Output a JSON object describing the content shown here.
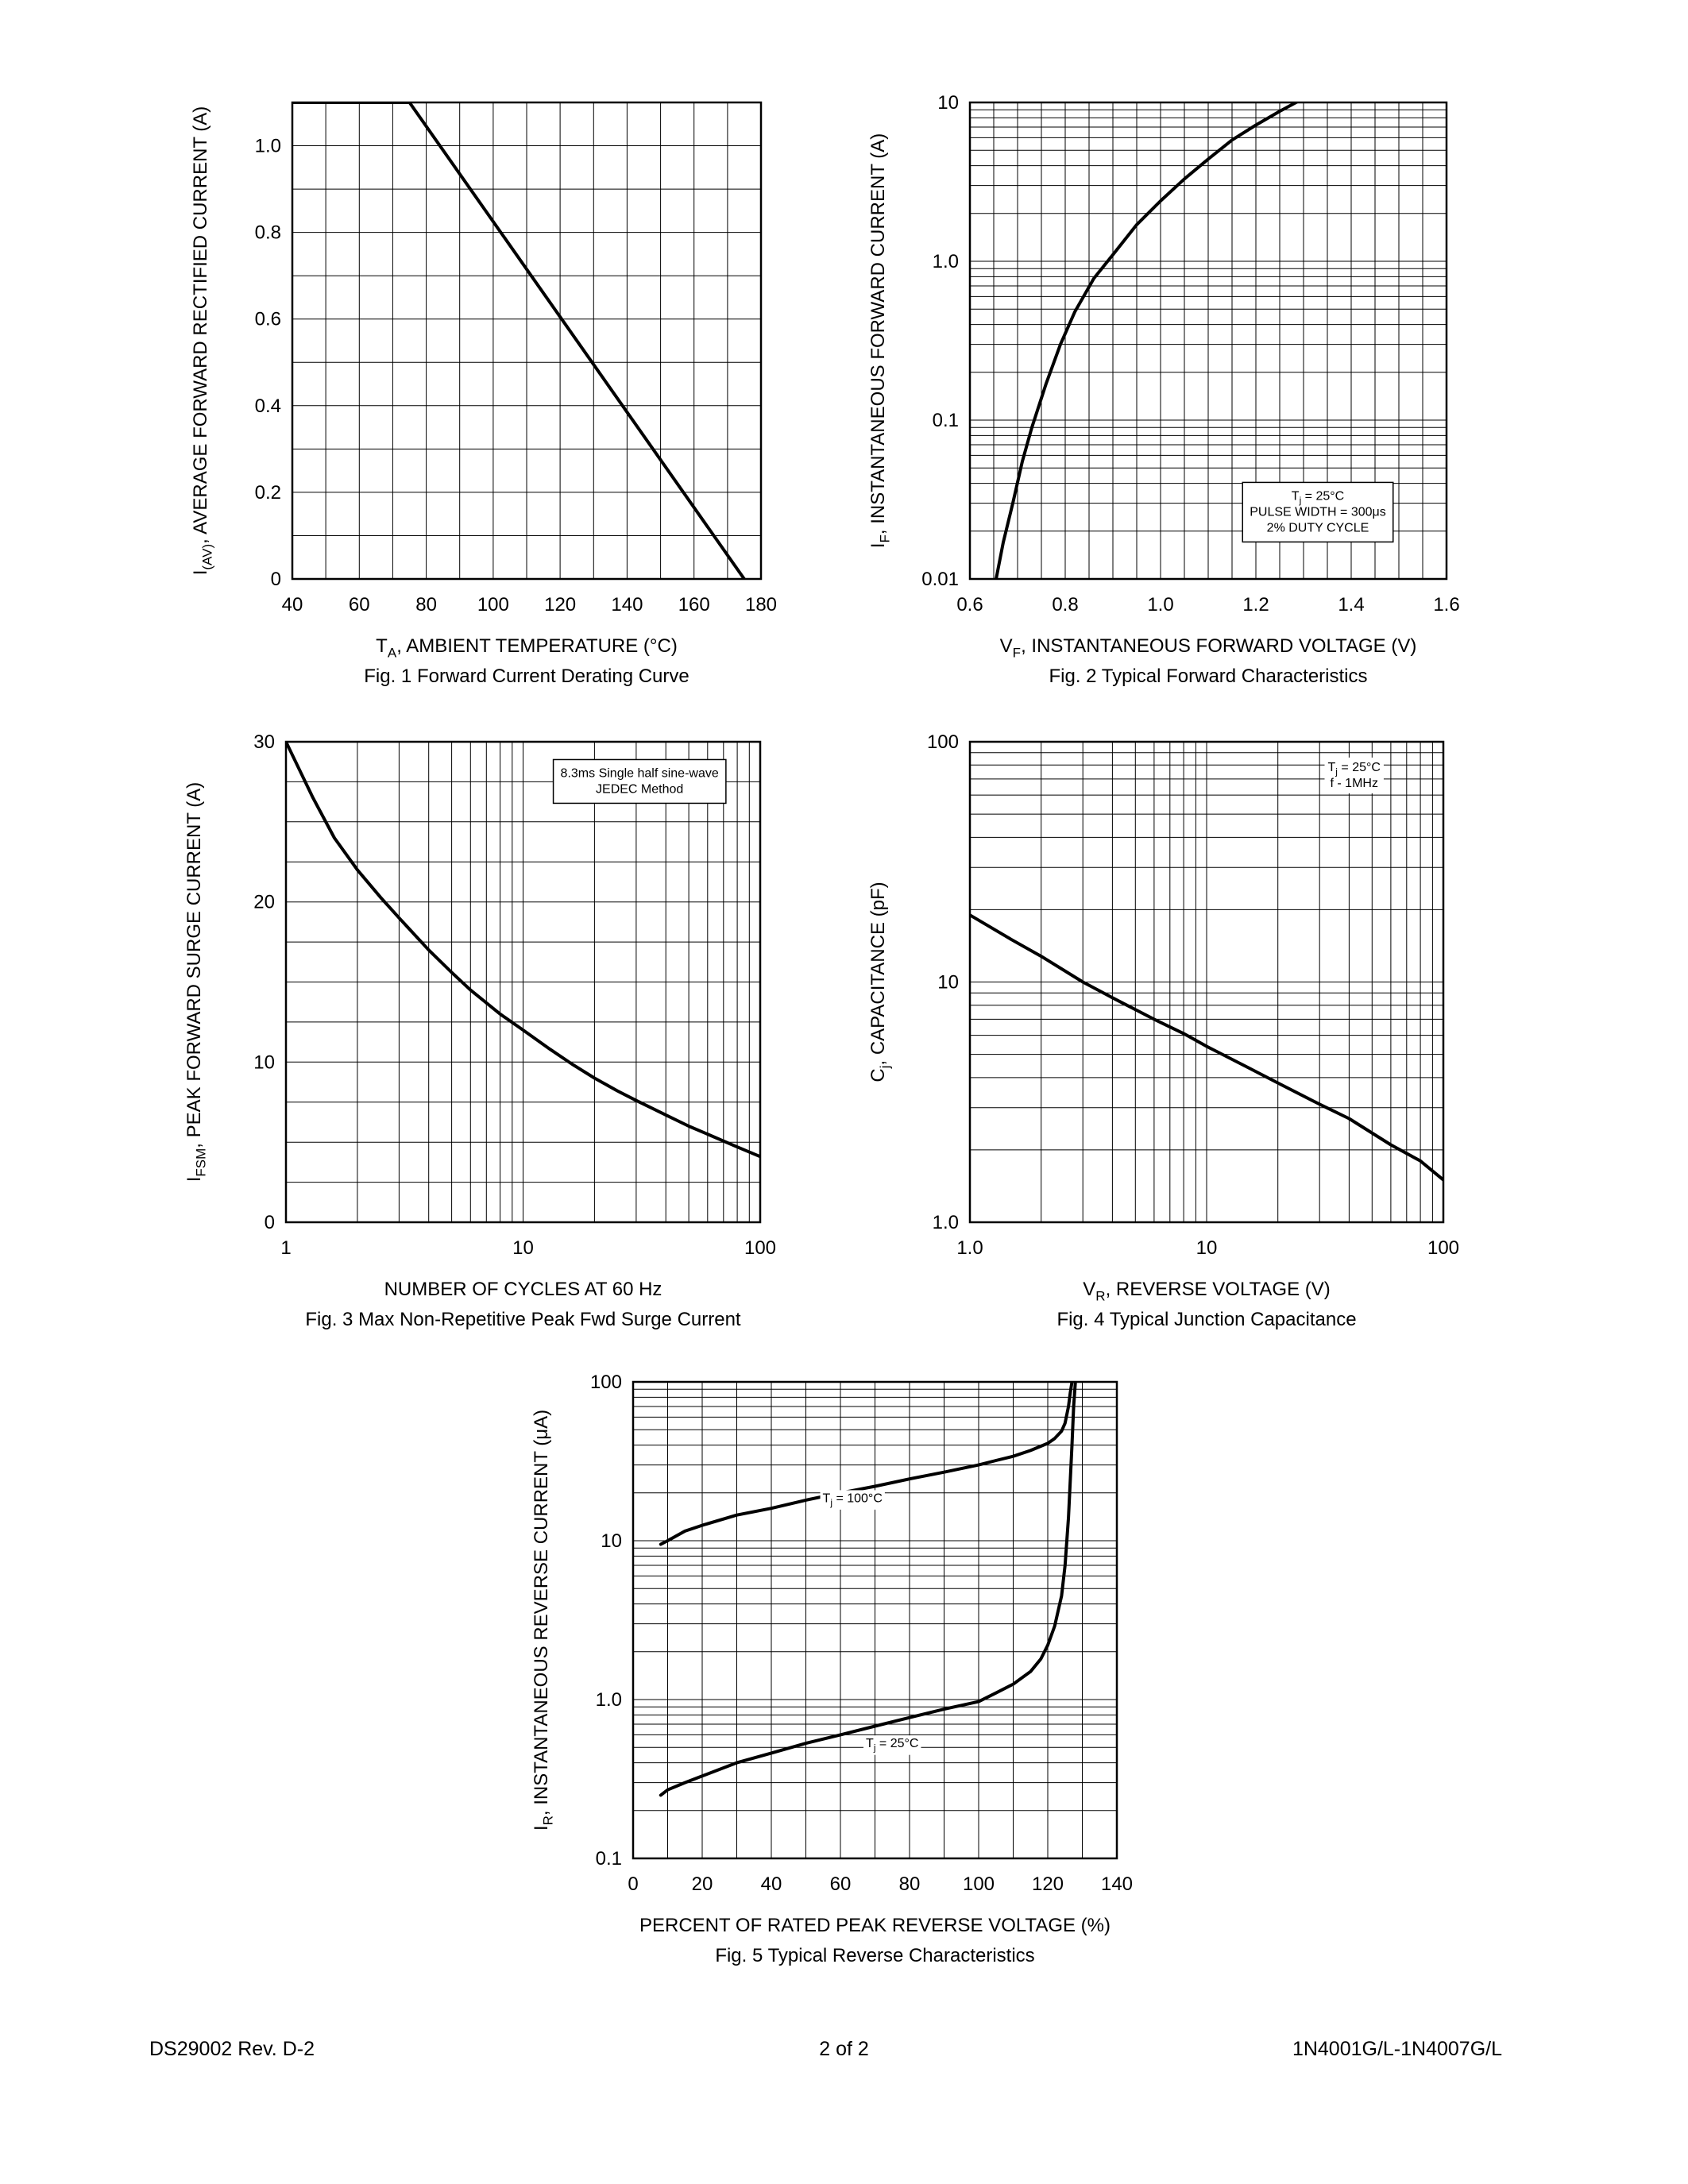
{
  "page": {
    "footer_left": "DS29002 Rev. D-2",
    "footer_center": "2 of 2",
    "footer_right": "1N4001G/L-1N4007G/L"
  },
  "chart_data": [
    {
      "id": "fig1",
      "type": "line",
      "title": "Fig. 1 Forward Current Derating Curve",
      "xlabel": "T~A~, AMBIENT TEMPERATURE (°C)",
      "ylabel": "I~(AV)~, AVERAGE FORWARD RECTIFIED CURRENT (A)",
      "xscale": "linear",
      "yscale": "linear",
      "xlim": [
        40,
        180
      ],
      "ylim": [
        0,
        1.1
      ],
      "x_minor_step": 10,
      "y_minor_step": 0.1,
      "grid": true,
      "xticks": [
        40,
        60,
        80,
        100,
        120,
        140,
        160,
        180
      ],
      "xtick_labels": [
        "40",
        "60",
        "80",
        "100",
        "120",
        "140",
        "160",
        "180"
      ],
      "yticks": [
        0,
        0.2,
        0.4,
        0.6,
        0.8,
        1.0
      ],
      "ytick_labels": [
        "0",
        "0.2",
        "0.4",
        "0.6",
        "0.8",
        "1.0"
      ],
      "series": [
        {
          "name": "derating-curve",
          "points": [
            [
              40,
              1.1
            ],
            [
              75,
              1.1
            ],
            [
              175,
              0
            ]
          ]
        }
      ]
    },
    {
      "id": "fig2",
      "type": "line",
      "title": "Fig. 2  Typical Forward Characteristics",
      "xlabel": "V~F~, INSTANTANEOUS FORWARD VOLTAGE (V)",
      "ylabel": "I~F~, INSTANTANEOUS FORWARD CURRENT (A)",
      "xscale": "linear",
      "yscale": "log",
      "xlim": [
        0.6,
        1.6
      ],
      "ylim": [
        0.01,
        10
      ],
      "x_minor_step": 0.05,
      "grid": true,
      "xticks": [
        0.6,
        0.8,
        1.0,
        1.2,
        1.4,
        1.6
      ],
      "xtick_labels": [
        "0.6",
        "0.8",
        "1.0",
        "1.2",
        "1.4",
        "1.6"
      ],
      "yticks": [
        0.01,
        0.1,
        1.0,
        10
      ],
      "ytick_labels": [
        "0.01",
        "0.1",
        "1.0",
        "10"
      ],
      "series": [
        {
          "name": "forward-characteristic",
          "points": [
            [
              0.655,
              0.01
            ],
            [
              0.67,
              0.017
            ],
            [
              0.69,
              0.03
            ],
            [
              0.71,
              0.055
            ],
            [
              0.73,
              0.09
            ],
            [
              0.76,
              0.17
            ],
            [
              0.79,
              0.3
            ],
            [
              0.82,
              0.48
            ],
            [
              0.86,
              0.78
            ],
            [
              0.9,
              1.1
            ],
            [
              0.95,
              1.7
            ],
            [
              1.0,
              2.4
            ],
            [
              1.05,
              3.3
            ],
            [
              1.1,
              4.4
            ],
            [
              1.15,
              5.8
            ],
            [
              1.2,
              7.2
            ],
            [
              1.25,
              8.8
            ],
            [
              1.3,
              10.6
            ]
          ]
        }
      ],
      "annotations": [
        {
          "x": 1.33,
          "y": 0.025,
          "boxed": true,
          "lines": [
            "T~j~ = 25°C",
            "PULSE WIDTH = 300μs",
            "2% DUTY CYCLE"
          ]
        }
      ]
    },
    {
      "id": "fig3",
      "type": "line",
      "title": "Fig. 3  Max Non-Repetitive Peak Fwd Surge Current",
      "xlabel": "NUMBER OF CYCLES AT 60 Hz",
      "ylabel": "I~FSM~, PEAK FORWARD SURGE CURRENT (A)",
      "xscale": "log",
      "yscale": "linear",
      "xlim": [
        1,
        100
      ],
      "ylim": [
        0,
        30
      ],
      "y_minor_step": 2.5,
      "grid": true,
      "xticks": [
        1,
        10,
        100
      ],
      "xtick_labels": [
        "1",
        "10",
        "100"
      ],
      "yticks": [
        0,
        10,
        20,
        30
      ],
      "ytick_labels": [
        "0",
        "10",
        "20",
        "30"
      ],
      "series": [
        {
          "name": "surge-current",
          "points": [
            [
              1,
              30
            ],
            [
              1.3,
              26.5
            ],
            [
              1.6,
              24
            ],
            [
              2,
              22
            ],
            [
              2.5,
              20.3
            ],
            [
              3,
              19
            ],
            [
              4,
              17
            ],
            [
              5,
              15.6
            ],
            [
              6,
              14.5
            ],
            [
              8,
              13
            ],
            [
              10,
              12
            ],
            [
              13,
              10.8
            ],
            [
              16,
              9.9
            ],
            [
              20,
              9
            ],
            [
              25,
              8.2
            ],
            [
              30,
              7.6
            ],
            [
              40,
              6.7
            ],
            [
              50,
              6
            ],
            [
              60,
              5.5
            ],
            [
              80,
              4.7
            ],
            [
              100,
              4.1
            ]
          ]
        }
      ],
      "annotations": [
        {
          "x": 31,
          "y": 27.3,
          "boxed": true,
          "lines": [
            "8.3ms Single half sine-wave",
            "JEDEC Method"
          ]
        }
      ]
    },
    {
      "id": "fig4",
      "type": "line",
      "title": "Fig. 4  Typical Junction Capacitance",
      "xlabel": "V~R~, REVERSE VOLTAGE (V)",
      "ylabel": "C~j~, CAPACITANCE (pF)",
      "xscale": "log",
      "yscale": "log",
      "xlim": [
        1,
        100
      ],
      "ylim": [
        1,
        100
      ],
      "grid": true,
      "xticks": [
        1,
        10,
        100
      ],
      "xtick_labels": [
        "1.0",
        "10",
        "100"
      ],
      "yticks": [
        1,
        10,
        100
      ],
      "ytick_labels": [
        "1.0",
        "10",
        "100"
      ],
      "series": [
        {
          "name": "junction-capacitance",
          "points": [
            [
              1,
              19
            ],
            [
              1.5,
              15
            ],
            [
              2,
              12.8
            ],
            [
              3,
              10
            ],
            [
              4,
              8.6
            ],
            [
              6,
              7
            ],
            [
              8,
              6.1
            ],
            [
              10,
              5.4
            ],
            [
              15,
              4.4
            ],
            [
              20,
              3.8
            ],
            [
              30,
              3.1
            ],
            [
              40,
              2.7
            ],
            [
              60,
              2.1
            ],
            [
              80,
              1.8
            ],
            [
              100,
              1.5
            ]
          ]
        }
      ],
      "annotations": [
        {
          "x": 42,
          "y": 70,
          "boxed": false,
          "lines": [
            "T~j~ = 25°C",
            "f - 1MHz"
          ]
        }
      ]
    },
    {
      "id": "fig5",
      "type": "line",
      "title": "Fig. 5  Typical Reverse Characteristics",
      "xlabel": "PERCENT OF RATED PEAK REVERSE VOLTAGE (%)",
      "ylabel": "I~R~, INSTANTANEOUS REVERSE CURRENT (μA)",
      "xscale": "linear",
      "yscale": "log",
      "xlim": [
        0,
        140
      ],
      "ylim": [
        0.1,
        100
      ],
      "x_minor_step": 10,
      "grid": true,
      "xticks": [
        0,
        20,
        40,
        60,
        80,
        100,
        120,
        140
      ],
      "xtick_labels": [
        "0",
        "20",
        "40",
        "60",
        "80",
        "100",
        "120",
        "140"
      ],
      "yticks": [
        0.1,
        1.0,
        10,
        100
      ],
      "ytick_labels": [
        "0.1",
        "1.0",
        "10",
        "100"
      ],
      "series": [
        {
          "name": "reverse-current-100c",
          "points": [
            [
              8,
              9.5
            ],
            [
              10,
              10
            ],
            [
              15,
              11.5
            ],
            [
              20,
              12.5
            ],
            [
              30,
              14.5
            ],
            [
              40,
              16
            ],
            [
              50,
              18
            ],
            [
              60,
              20
            ],
            [
              70,
              22
            ],
            [
              80,
              24.5
            ],
            [
              90,
              27
            ],
            [
              100,
              30
            ],
            [
              105,
              32
            ],
            [
              110,
              34
            ],
            [
              115,
              37
            ],
            [
              120,
              41
            ],
            [
              122,
              44
            ],
            [
              124,
              49
            ],
            [
              125,
              55
            ],
            [
              126,
              70
            ],
            [
              126.5,
              85
            ],
            [
              127,
              100
            ]
          ]
        },
        {
          "name": "reverse-current-25c",
          "points": [
            [
              8,
              0.25
            ],
            [
              10,
              0.27
            ],
            [
              15,
              0.3
            ],
            [
              20,
              0.33
            ],
            [
              30,
              0.4
            ],
            [
              40,
              0.46
            ],
            [
              50,
              0.53
            ],
            [
              60,
              0.6
            ],
            [
              70,
              0.68
            ],
            [
              80,
              0.77
            ],
            [
              90,
              0.87
            ],
            [
              100,
              0.97
            ],
            [
              105,
              1.1
            ],
            [
              110,
              1.25
            ],
            [
              115,
              1.5
            ],
            [
              118,
              1.8
            ],
            [
              120,
              2.2
            ],
            [
              122,
              2.9
            ],
            [
              124,
              4.5
            ],
            [
              125,
              7
            ],
            [
              126,
              14
            ],
            [
              127,
              40
            ],
            [
              127.5,
              70
            ],
            [
              128,
              100
            ]
          ]
        }
      ],
      "labels": [
        {
          "x": 63.5,
          "y": 17.5,
          "text": "T~j~ = 100°C"
        },
        {
          "x": 75,
          "y": 0.5,
          "text": "T~j~ = 25°C"
        }
      ]
    }
  ]
}
